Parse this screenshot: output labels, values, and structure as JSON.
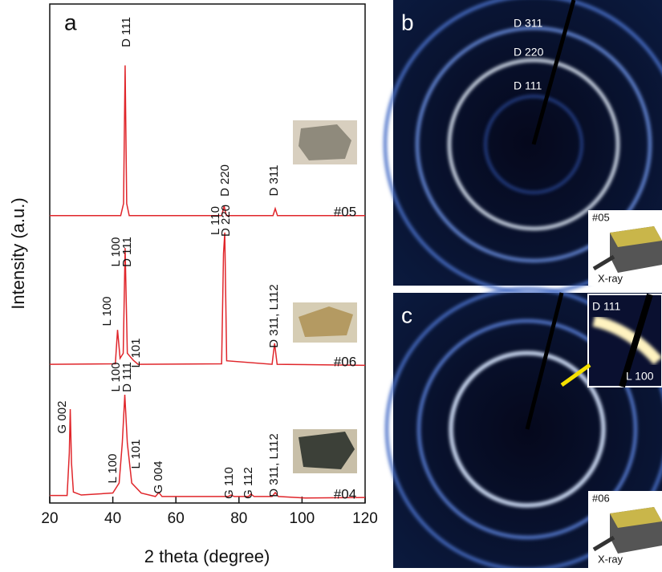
{
  "chart_data": {
    "type": "line",
    "panel": "a",
    "xlabel": "2 theta (degree)",
    "ylabel": "Intensity (a.u.)",
    "xlim": [
      20,
      120
    ],
    "xticks": [
      20,
      40,
      60,
      80,
      100,
      120
    ],
    "ylim": [
      0,
      100
    ],
    "series": [
      {
        "name": "#05",
        "color": "#e0262b",
        "x": [
          20,
          42.5,
          43.4,
          43.9,
          44.4,
          45.2,
          74.5,
          75.3,
          76,
          90.8,
          91.5,
          92.2,
          120
        ],
        "values": [
          57.6,
          57.6,
          60,
          87.7,
          60,
          57.6,
          57.6,
          59.5,
          57.6,
          57.6,
          59.0,
          57.6,
          57.6
        ]
      },
      {
        "name": "#06",
        "color": "#e0262b",
        "x": [
          20,
          40.8,
          41.5,
          42.3,
          43.3,
          43.9,
          44.6,
          46.5,
          48,
          74.5,
          75.1,
          75.5,
          76.1,
          90.5,
          91.3,
          92.1,
          120
        ],
        "values": [
          27.8,
          27.9,
          34.7,
          29,
          30,
          51.1,
          30,
          28.6,
          27.8,
          27.9,
          50,
          54.2,
          28.5,
          27.8,
          32.0,
          27.8,
          27.6
        ]
      },
      {
        "name": "#04",
        "color": "#e0262b",
        "x": [
          20,
          25.5,
          26.2,
          26.5,
          26.9,
          27.5,
          30,
          40,
          42,
          43,
          43.8,
          44.6,
          46,
          49,
          53.5,
          54.6,
          55.6,
          76.5,
          77.5,
          78.5,
          83,
          83.8,
          84.8,
          90.5,
          91.5,
          92.5,
          101,
          120
        ],
        "values": [
          1.5,
          1.5,
          10,
          18.8,
          8,
          2.2,
          1.6,
          2.0,
          4,
          12,
          21.7,
          12,
          4,
          2.0,
          1.3,
          2.1,
          1.3,
          1.3,
          1.6,
          1.3,
          1.3,
          1.8,
          1.3,
          1.3,
          2.1,
          1.3,
          1.0,
          1.1
        ]
      }
    ],
    "annotations": [
      "D 111",
      "D 220",
      "D 311",
      "L 100",
      "D 111",
      "L 100",
      "L 101",
      "L 110",
      "D 220",
      "D 311, L112",
      "G 002",
      "L 100",
      "D 111",
      "L 100",
      "L 101",
      "G 004",
      "G 110",
      "G 112",
      "D 311, L112"
    ]
  },
  "panels": {
    "b": {
      "letter": "b",
      "rings": [
        "D 311",
        "D 220",
        "D 111"
      ],
      "sample": "#05",
      "beam": "X-ray"
    },
    "c": {
      "letter": "c",
      "inset": [
        "D 111",
        "L 100"
      ],
      "sample": "#06",
      "beam": "X-ray"
    }
  }
}
